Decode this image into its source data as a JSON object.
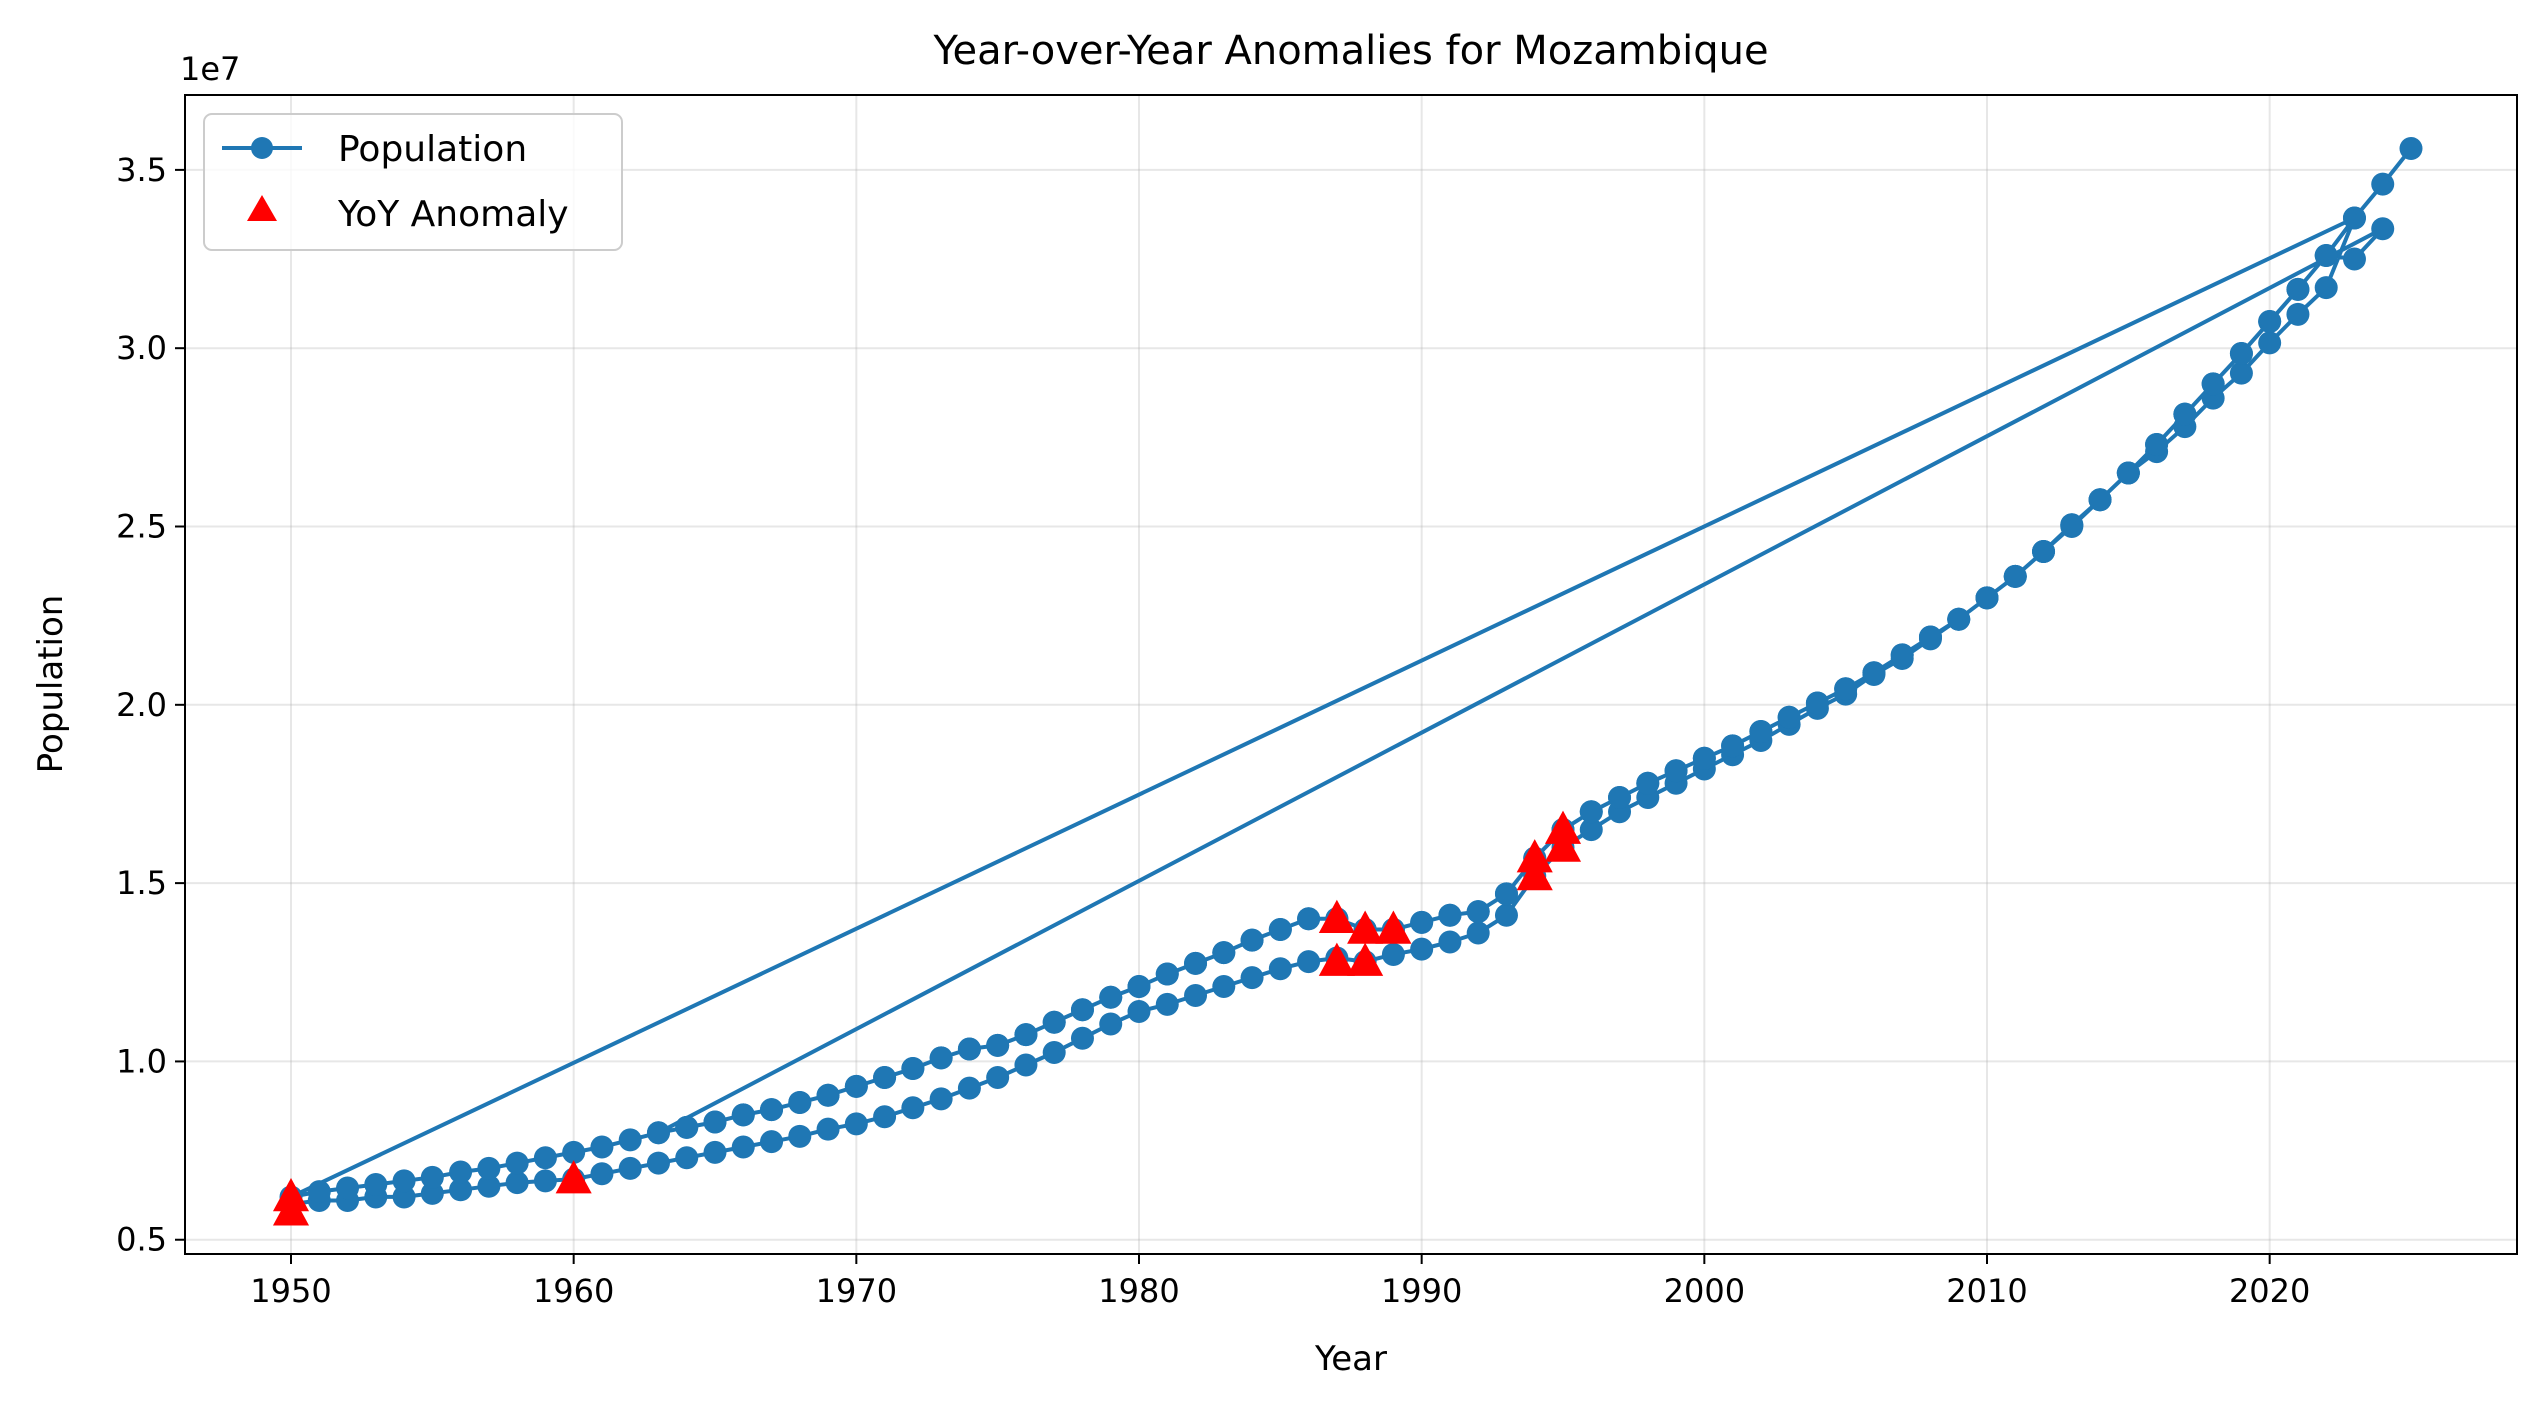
{
  "chart_data": {
    "type": "line",
    "title": "Year-over-Year Anomalies for Mozambique",
    "xlabel": "Year",
    "ylabel": "Population",
    "y_offset_text": "1e7",
    "y_multiplier": 10000000,
    "xlim": [
      1946.25,
      2028.75
    ],
    "ylim": [
      0.46,
      3.71
    ],
    "x_ticks": [
      1950,
      1960,
      1970,
      1980,
      1990,
      2000,
      2010,
      2020
    ],
    "y_ticks": [
      0.5,
      1.0,
      1.5,
      2.0,
      2.5,
      3.0,
      3.5
    ],
    "y_tick_labels": [
      "0.5",
      "1.0",
      "1.5",
      "2.0",
      "2.5",
      "3.0",
      "3.5"
    ],
    "grid": true,
    "legend_position": "upper-left",
    "colors": {
      "population": "#1f77b4",
      "anomaly": "#ff0000"
    },
    "series": [
      {
        "name": "Population",
        "style": "line-marker",
        "x": [
          1950,
          1951,
          1952,
          1953,
          1954,
          1955,
          1956,
          1957,
          1958,
          1959,
          1960,
          1961,
          1962,
          1963,
          1964,
          1965,
          1966,
          1967,
          1968,
          1969,
          1970,
          1971,
          1972,
          1973,
          1974,
          1975,
          1976,
          1977,
          1978,
          1979,
          1980,
          1981,
          1982,
          1983,
          1984,
          1985,
          1986,
          1987,
          1988,
          1989,
          1990,
          1991,
          1992,
          1993,
          1994,
          1995,
          1996,
          1997,
          1998,
          1999,
          2000,
          2001,
          2002,
          2003,
          2004,
          2005,
          2006,
          2007,
          2008,
          2009,
          2010,
          2011,
          2012,
          2013,
          2014,
          2015,
          2016,
          2017,
          2018,
          2019,
          2020,
          2021,
          2022,
          2023,
          1950,
          1951,
          1952,
          1953,
          1954,
          1955,
          1956,
          1957,
          1958,
          1959,
          1960,
          1961,
          1962,
          1963,
          1964,
          1965,
          1966,
          1967,
          1968,
          1969,
          1970,
          1971,
          1972,
          1973,
          1974,
          1975,
          1976,
          1977,
          1978,
          1979,
          1980,
          1981,
          1982,
          1983,
          1984,
          1985,
          1986,
          1987,
          1988,
          1989,
          1990,
          1991,
          1992,
          1993,
          1994,
          1995,
          1996,
          1997,
          1998,
          1999,
          2000,
          2001,
          2002,
          2003,
          2004,
          2005,
          2006,
          2007,
          2008,
          2009,
          2010,
          2011,
          2012,
          2013,
          2014,
          2015,
          2016,
          2017,
          2018,
          2019,
          2020,
          2021,
          2022,
          2023,
          2024,
          1963,
          1964,
          1965,
          1966,
          1967,
          1968,
          1969,
          1970,
          1971,
          1972,
          1973,
          1974,
          1975,
          1976,
          1977,
          1978,
          1979,
          1980,
          1981,
          1982,
          1983,
          1984,
          1985,
          1986,
          1987,
          1988,
          1989,
          1990,
          1991,
          1992,
          1993,
          1994,
          1995,
          1996,
          1997,
          1998,
          1999,
          2000,
          2001,
          2002,
          2003,
          2004,
          2005,
          2006,
          2007,
          2008,
          2009,
          2010,
          2011,
          2012,
          2013,
          2014,
          2015,
          2016,
          2017,
          2018,
          2019,
          2020,
          2021,
          2022,
          2023,
          2024,
          2025
        ],
        "y": [
          0.6,
          0.61,
          0.61,
          0.62,
          0.62,
          0.63,
          0.64,
          0.65,
          0.66,
          0.665,
          0.67,
          0.685,
          0.7,
          0.715,
          0.73,
          0.745,
          0.76,
          0.775,
          0.79,
          0.81,
          0.825,
          0.845,
          0.87,
          0.895,
          0.925,
          0.955,
          0.99,
          1.025,
          1.065,
          1.105,
          1.14,
          1.16,
          1.185,
          1.21,
          1.235,
          1.26,
          1.28,
          1.29,
          1.28,
          1.3,
          1.315,
          1.335,
          1.36,
          1.41,
          1.52,
          1.6,
          1.65,
          1.7,
          1.74,
          1.78,
          1.82,
          1.86,
          1.9,
          1.945,
          1.99,
          2.03,
          2.085,
          2.13,
          2.185,
          2.24,
          2.3,
          2.36,
          2.43,
          2.5,
          2.575,
          2.65,
          2.71,
          2.78,
          2.86,
          2.93,
          3.015,
          3.095,
          3.17,
          3.365,
          0.62,
          0.635,
          0.645,
          0.655,
          0.665,
          0.675,
          0.69,
          0.7,
          0.715,
          0.73,
          0.745,
          0.76,
          0.78,
          0.8,
          0.815,
          0.83,
          0.85,
          0.865,
          0.885,
          0.905,
          0.93,
          0.955,
          0.98,
          1.01,
          1.035,
          1.045,
          1.075,
          1.11,
          1.145,
          1.18,
          1.21,
          1.245,
          1.275,
          1.305,
          1.34,
          1.37,
          1.4,
          1.4,
          1.37,
          1.37,
          1.39,
          1.41,
          1.42,
          1.47,
          1.57,
          1.65,
          1.7,
          1.74,
          1.78,
          1.815,
          1.85,
          1.885,
          1.925,
          1.965,
          2.005,
          2.045,
          2.09,
          2.14,
          2.19,
          2.24,
          2.3,
          2.36,
          2.43,
          2.505,
          2.575,
          2.65,
          2.73,
          2.815,
          2.9,
          2.985,
          3.075,
          3.165,
          3.26,
          3.25,
          3.335,
          0.8,
          0.815,
          0.83,
          0.85,
          0.865,
          0.885,
          0.905,
          0.93,
          0.955,
          0.98,
          1.01,
          1.035,
          1.045,
          1.075,
          1.11,
          1.145,
          1.18,
          1.21,
          1.245,
          1.275,
          1.305,
          1.34,
          1.37,
          1.4,
          1.4,
          1.37,
          1.37,
          1.39,
          1.41,
          1.42,
          1.47,
          1.57,
          1.65,
          1.7,
          1.74,
          1.78,
          1.815,
          1.85,
          1.885,
          1.925,
          1.965,
          2.005,
          2.045,
          2.09,
          2.14,
          2.19,
          2.24,
          2.3,
          2.36,
          2.43,
          2.505,
          2.575,
          2.65,
          2.73,
          2.815,
          2.9,
          2.985,
          3.075,
          3.165,
          3.26,
          3.365,
          3.46,
          3.56
        ]
      },
      {
        "name": "YoY Anomaly",
        "style": "triangle-marker",
        "x": [
          1950,
          1950,
          1960,
          1987,
          1987,
          1988,
          1988,
          1989,
          1994,
          1994,
          1995,
          1995
        ],
        "y": [
          0.58,
          0.62,
          0.67,
          1.28,
          1.4,
          1.28,
          1.37,
          1.37,
          1.52,
          1.57,
          1.6,
          1.65
        ]
      }
    ]
  }
}
